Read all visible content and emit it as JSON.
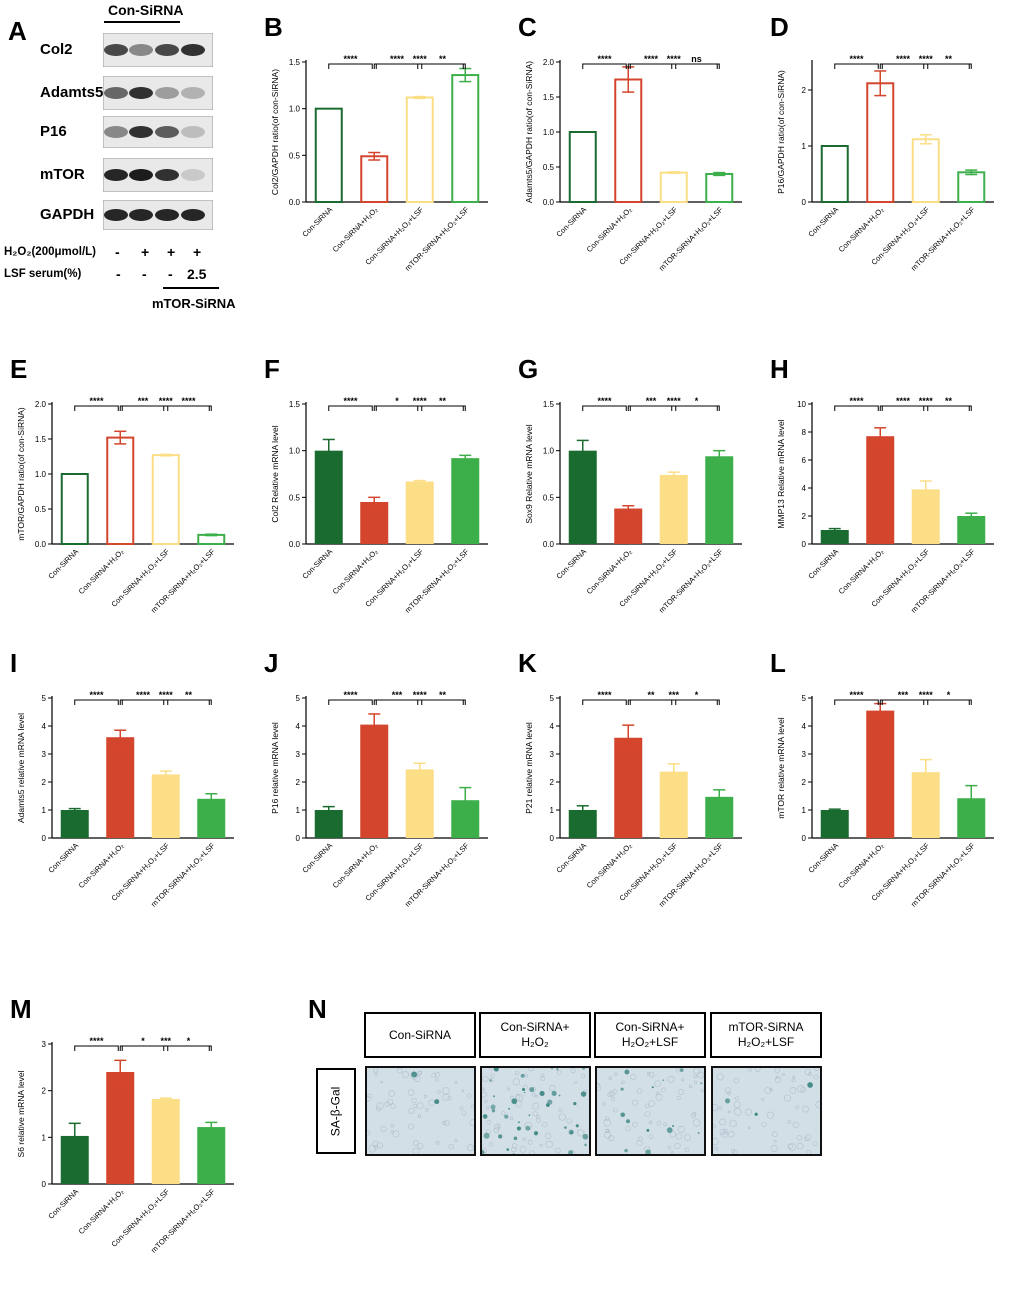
{
  "colors": {
    "dark_green": "#1a6b30",
    "red": "#d4452e",
    "yellow": "#fbde85",
    "light_green": "#3daf4a",
    "stain": "#2f7f7a"
  },
  "chart_data": [
    {
      "id": "B",
      "type": "bar",
      "style": "outline",
      "ylabel": "Col2/GAPDH ratio(of con-SiRNA)",
      "ylim": [
        0,
        1.5
      ],
      "yticks": [
        0.0,
        0.5,
        1.0,
        1.5
      ],
      "tick_labels": [
        "0.0",
        "0.5",
        "1.0",
        "1.5"
      ],
      "categories": [
        "Con-SiRNA",
        "Con-SiRNA+H₂O₂",
        "Con-SiRNA+H₂O₂+LSF",
        "mTOR-SiRNA+H₂O₂+LSF"
      ],
      "values": [
        1.0,
        0.49,
        1.12,
        1.36
      ],
      "errors": [
        0,
        0.04,
        0.01,
        0.07
      ],
      "sig": [
        {
          "a": 0,
          "b": 1,
          "label": "****"
        },
        {
          "a": 1,
          "b": 2,
          "label": "****"
        },
        {
          "a": 2,
          "b": 3,
          "label": "**"
        },
        {
          "a": 1,
          "b": 3,
          "label": "****"
        }
      ]
    },
    {
      "id": "C",
      "type": "bar",
      "style": "outline",
      "ylabel": "Adamts5/GAPDH ratio(of con-SiRNA)",
      "ylim": [
        0,
        2.0
      ],
      "yticks": [
        0.0,
        0.5,
        1.0,
        1.5,
        2.0
      ],
      "tick_labels": [
        "0.0",
        "0.5",
        "1.0",
        "1.5",
        "2.0"
      ],
      "categories": [
        "Con-SiRNA",
        "Con-SiRNA+H₂O₂",
        "Con-SiRNA+H₂O₂+LSF",
        "mTOR-SiRNA+H₂O₂+LSF"
      ],
      "values": [
        1.0,
        1.75,
        0.42,
        0.4
      ],
      "errors": [
        0,
        0.18,
        0.01,
        0.02
      ],
      "sig": [
        {
          "a": 0,
          "b": 1,
          "label": "****"
        },
        {
          "a": 1,
          "b": 2,
          "label": "****"
        },
        {
          "a": 2,
          "b": 3,
          "label": "ns"
        },
        {
          "a": 1,
          "b": 3,
          "label": "****"
        }
      ]
    },
    {
      "id": "D",
      "type": "bar",
      "style": "outline",
      "ylabel": "P16/GAPDH ratio(of con-SiRNA)",
      "ylim": [
        0,
        2.5
      ],
      "yticks": [
        0,
        1,
        2
      ],
      "tick_labels": [
        "0",
        "1",
        "2"
      ],
      "categories": [
        "Con-SiRNA",
        "Con-SiRNA+H₂O₂",
        "Con-SiRNA+H₂O₂+LSF",
        "mTOR-SiRNA+H₂O₂+LSF"
      ],
      "values": [
        1.0,
        2.12,
        1.12,
        0.53
      ],
      "errors": [
        0,
        0.22,
        0.08,
        0.04
      ],
      "sig": [
        {
          "a": 0,
          "b": 1,
          "label": "****"
        },
        {
          "a": 1,
          "b": 2,
          "label": "****"
        },
        {
          "a": 2,
          "b": 3,
          "label": "**"
        },
        {
          "a": 1,
          "b": 3,
          "label": "****"
        }
      ]
    },
    {
      "id": "E",
      "type": "bar",
      "style": "outline",
      "ylabel": "mTOR/GAPDH ratio(of con-SiRNA)",
      "ylim": [
        0,
        2.0
      ],
      "yticks": [
        0.0,
        0.5,
        1.0,
        1.5,
        2.0
      ],
      "tick_labels": [
        "0.0",
        "0.5",
        "1.0",
        "1.5",
        "2.0"
      ],
      "categories": [
        "Con-SiRNA",
        "Con-SiRNA+H₂O₂",
        "Con-SiRNA+H₂O₂+LSF",
        "mTOR-SiRNA+H₂O₂+LSF"
      ],
      "values": [
        1.0,
        1.52,
        1.27,
        0.13
      ],
      "errors": [
        0,
        0.09,
        0.01,
        0.01
      ],
      "sig": [
        {
          "a": 0,
          "b": 1,
          "label": "****"
        },
        {
          "a": 1,
          "b": 2,
          "label": "***"
        },
        {
          "a": 2,
          "b": 3,
          "label": "****"
        },
        {
          "a": 1,
          "b": 3,
          "label": "****"
        }
      ]
    },
    {
      "id": "F",
      "type": "bar",
      "style": "filled",
      "ylabel": "Col2 Relative mRNA level",
      "ylim": [
        0,
        1.5
      ],
      "yticks": [
        0.0,
        0.5,
        1.0,
        1.5
      ],
      "tick_labels": [
        "0.0",
        "0.5",
        "1.0",
        "1.5"
      ],
      "categories": [
        "Con-SiRNA",
        "Con-SiRNA+H₂O₂",
        "Con-SiRNA+H₂O₂+LSF",
        "mTOR-SiRNA+H₂O₂+LSF"
      ],
      "values": [
        1.0,
        0.45,
        0.67,
        0.92
      ],
      "errors": [
        0.12,
        0.05,
        0.01,
        0.03
      ],
      "sig": [
        {
          "a": 0,
          "b": 1,
          "label": "****"
        },
        {
          "a": 1,
          "b": 2,
          "label": "*"
        },
        {
          "a": 2,
          "b": 3,
          "label": "**"
        },
        {
          "a": 1,
          "b": 3,
          "label": "****"
        }
      ]
    },
    {
      "id": "G",
      "type": "bar",
      "style": "filled",
      "ylabel": "Sox9 Relative mRNA level",
      "ylim": [
        0,
        1.5
      ],
      "yticks": [
        0.0,
        0.5,
        1.0,
        1.5
      ],
      "tick_labels": [
        "0.0",
        "0.5",
        "1.0",
        "1.5"
      ],
      "categories": [
        "Con-SiRNA",
        "Con-SiRNA+H₂O₂",
        "Con-SiRNA+H₂O₂+LSF",
        "mTOR-SiRNA+H₂O₂+LSF"
      ],
      "values": [
        1.0,
        0.38,
        0.74,
        0.94
      ],
      "errors": [
        0.11,
        0.03,
        0.03,
        0.06
      ],
      "sig": [
        {
          "a": 0,
          "b": 1,
          "label": "****"
        },
        {
          "a": 1,
          "b": 2,
          "label": "***"
        },
        {
          "a": 2,
          "b": 3,
          "label": "*"
        },
        {
          "a": 1,
          "b": 3,
          "label": "****"
        }
      ]
    },
    {
      "id": "H",
      "type": "bar",
      "style": "filled",
      "ylabel": "MMP13 Relative mRNA level",
      "ylim": [
        0,
        10
      ],
      "yticks": [
        0,
        2,
        4,
        6,
        8,
        10
      ],
      "tick_labels": [
        "0",
        "2",
        "4",
        "6",
        "8",
        "10"
      ],
      "categories": [
        "Con-SiRNA",
        "Con-SiRNA+H₂O₂",
        "Con-SiRNA+H₂O₂+LSF",
        "mTOR-SiRNA+H₂O₂+LSF"
      ],
      "values": [
        1.0,
        7.7,
        3.9,
        2.0
      ],
      "errors": [
        0.1,
        0.6,
        0.6,
        0.2
      ],
      "sig": [
        {
          "a": 0,
          "b": 1,
          "label": "****"
        },
        {
          "a": 1,
          "b": 2,
          "label": "****"
        },
        {
          "a": 2,
          "b": 3,
          "label": "**"
        },
        {
          "a": 1,
          "b": 3,
          "label": "****"
        }
      ]
    },
    {
      "id": "I",
      "type": "bar",
      "style": "filled",
      "ylabel": "Adamts5 relative mRNA level",
      "ylim": [
        0,
        5
      ],
      "yticks": [
        0,
        1,
        2,
        3,
        4,
        5
      ],
      "tick_labels": [
        "0",
        "1",
        "2",
        "3",
        "4",
        "5"
      ],
      "categories": [
        "Con-SiRNA",
        "Con-SiRNA+H₂O₂",
        "Con-SiRNA+H₂O₂+LSF",
        "mTOR-SiRNA+H₂O₂+LSF"
      ],
      "values": [
        1.0,
        3.6,
        2.27,
        1.4
      ],
      "errors": [
        0.05,
        0.25,
        0.12,
        0.18
      ],
      "sig": [
        {
          "a": 0,
          "b": 1,
          "label": "****"
        },
        {
          "a": 1,
          "b": 2,
          "label": "****"
        },
        {
          "a": 2,
          "b": 3,
          "label": "**"
        },
        {
          "a": 1,
          "b": 3,
          "label": "****"
        }
      ]
    },
    {
      "id": "J",
      "type": "bar",
      "style": "filled",
      "ylabel": "P16 relative mRNA level",
      "ylim": [
        0,
        5
      ],
      "yticks": [
        0,
        1,
        2,
        3,
        4,
        5
      ],
      "tick_labels": [
        "0",
        "1",
        "2",
        "3",
        "4",
        "5"
      ],
      "categories": [
        "Con-SiRNA",
        "Con-SiRNA+H₂O₂",
        "Con-SiRNA+H₂O₂+LSF",
        "mTOR-SiRNA+H₂O₂+LSF"
      ],
      "values": [
        1.0,
        4.05,
        2.45,
        1.35
      ],
      "errors": [
        0.12,
        0.38,
        0.22,
        0.45
      ],
      "sig": [
        {
          "a": 0,
          "b": 1,
          "label": "****"
        },
        {
          "a": 1,
          "b": 2,
          "label": "***"
        },
        {
          "a": 2,
          "b": 3,
          "label": "**"
        },
        {
          "a": 1,
          "b": 3,
          "label": "****"
        }
      ]
    },
    {
      "id": "K",
      "type": "bar",
      "style": "filled",
      "ylabel": "P21 relative mRNA level",
      "ylim": [
        0,
        5
      ],
      "yticks": [
        0,
        1,
        2,
        3,
        4,
        5
      ],
      "tick_labels": [
        "0",
        "1",
        "2",
        "3",
        "4",
        "5"
      ],
      "categories": [
        "Con-SiRNA",
        "Con-SiRNA+H₂O₂",
        "Con-SiRNA+H₂O₂+LSF",
        "mTOR-SiRNA+H₂O₂+LSF"
      ],
      "values": [
        1.0,
        3.58,
        2.37,
        1.47
      ],
      "errors": [
        0.15,
        0.45,
        0.28,
        0.25
      ],
      "sig": [
        {
          "a": 0,
          "b": 1,
          "label": "****"
        },
        {
          "a": 1,
          "b": 2,
          "label": "**"
        },
        {
          "a": 2,
          "b": 3,
          "label": "*"
        },
        {
          "a": 1,
          "b": 3,
          "label": "***"
        }
      ]
    },
    {
      "id": "L",
      "type": "bar",
      "style": "filled",
      "ylabel": "mTOR relative mRNA level",
      "ylim": [
        0,
        5
      ],
      "yticks": [
        0,
        1,
        2,
        3,
        4,
        5
      ],
      "tick_labels": [
        "0",
        "1",
        "2",
        "3",
        "4",
        "5"
      ],
      "categories": [
        "Con-SiRNA",
        "Con-SiRNA+H₂O₂",
        "Con-SiRNA+H₂O₂+LSF",
        "mTOR-SiRNA+H₂O₂+LSF"
      ],
      "values": [
        1.0,
        4.55,
        2.35,
        1.42
      ],
      "errors": [
        0.03,
        0.25,
        0.45,
        0.45
      ],
      "sig": [
        {
          "a": 0,
          "b": 1,
          "label": "****"
        },
        {
          "a": 1,
          "b": 2,
          "label": "***"
        },
        {
          "a": 2,
          "b": 3,
          "label": "*"
        },
        {
          "a": 1,
          "b": 3,
          "label": "****"
        }
      ]
    },
    {
      "id": "M",
      "type": "bar",
      "style": "filled",
      "ylabel": "S6 relative mRNA level",
      "ylim": [
        0,
        3
      ],
      "yticks": [
        0,
        1,
        2,
        3
      ],
      "tick_labels": [
        "0",
        "1",
        "2",
        "3"
      ],
      "categories": [
        "Con-SiRNA",
        "Con-SiRNA+H₂O₂",
        "Con-SiRNA+H₂O₂+LSF",
        "mTOR-SiRNA+H₂O₂+LSF"
      ],
      "values": [
        1.03,
        2.4,
        1.82,
        1.22
      ],
      "errors": [
        0.27,
        0.25,
        0.02,
        0.1
      ],
      "sig": [
        {
          "a": 0,
          "b": 1,
          "label": "****"
        },
        {
          "a": 1,
          "b": 2,
          "label": "*"
        },
        {
          "a": 2,
          "b": 3,
          "label": "*"
        },
        {
          "a": 1,
          "b": 3,
          "label": "***"
        }
      ]
    }
  ],
  "panel_a": {
    "letter": "A",
    "top_label": "Con-SiRNA",
    "bottom_label": "mTOR-SiRNA",
    "rows": [
      "Col2",
      "Adamts5",
      "P16",
      "mTOR",
      "GAPDH"
    ],
    "treatment1_label": "H₂O₂(200μmol/L)",
    "treatment1_signs": [
      "-",
      "+",
      "+",
      "+"
    ],
    "treatment2_label": "LSF serum(%)",
    "treatment2_signs": [
      "-",
      "-",
      "-",
      "2.5"
    ]
  },
  "panel_n": {
    "letter": "N",
    "headers": [
      [
        "Con-SiRNA"
      ],
      [
        "Con-SiRNA+",
        "H₂O₂"
      ],
      [
        "Con-SiRNA+",
        "H₂O₂+LSF"
      ],
      [
        "mTOR-SiRNA",
        "H₂O₂+LSF"
      ]
    ],
    "row_label": "SA-β-Gal"
  }
}
